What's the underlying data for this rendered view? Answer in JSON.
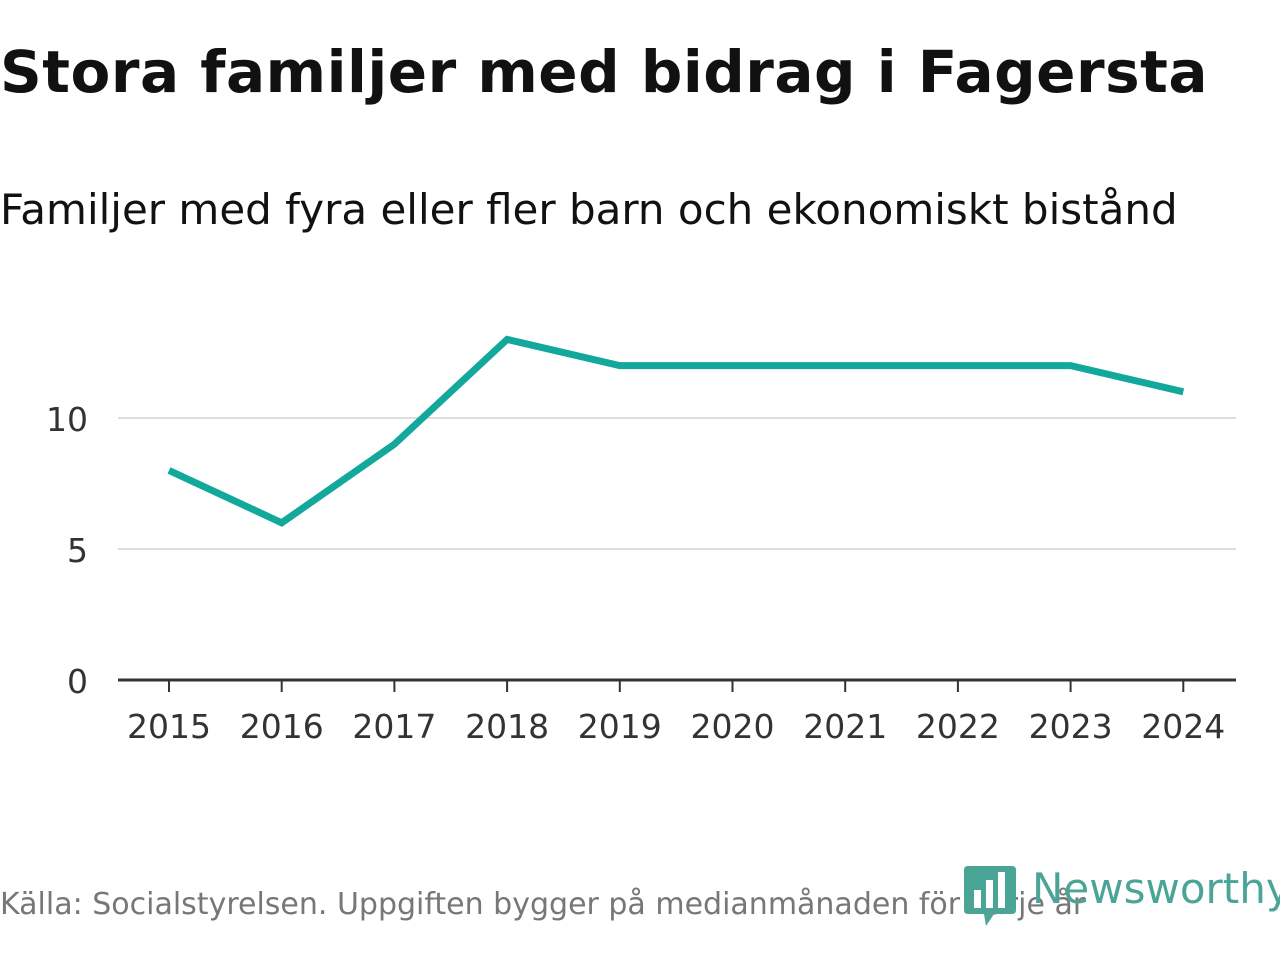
{
  "header": {
    "title": "Stora familjer med bidrag i Fagersta",
    "subtitle": "Familjer med fyra eller fler barn och ekonomiskt bistånd"
  },
  "footer": {
    "source": "Källa: Socialstyrelsen. Uppgiften bygger på medianmånaden för varje år"
  },
  "brand": {
    "name": "Newsworthy",
    "logo_icon": "newsworthy-bar-chart-logo",
    "color": "#4ba596"
  },
  "chart_data": {
    "type": "line",
    "title": "Stora familjer med bidrag i Fagersta",
    "subtitle": "Familjer med fyra eller fler barn och ekonomiskt bistånd",
    "xlabel": "",
    "ylabel": "",
    "categories": [
      "2015",
      "2016",
      "2017",
      "2018",
      "2019",
      "2020",
      "2021",
      "2022",
      "2023",
      "2024"
    ],
    "series": [
      {
        "name": "Familjer med fyra eller fler barn och ekonomiskt bistånd",
        "values": [
          8,
          6,
          9,
          13,
          12,
          12,
          12,
          12,
          12,
          11
        ],
        "color": "#12a89c"
      }
    ],
    "ylim": [
      0,
      15
    ],
    "yticks": [
      0,
      5,
      10
    ],
    "ytick_labels": [
      "0",
      "5",
      "10"
    ],
    "grid": true,
    "legend": "none",
    "colors": {
      "grid": "#dddddd",
      "axis": "#333333",
      "tick_text": "#333333"
    }
  }
}
